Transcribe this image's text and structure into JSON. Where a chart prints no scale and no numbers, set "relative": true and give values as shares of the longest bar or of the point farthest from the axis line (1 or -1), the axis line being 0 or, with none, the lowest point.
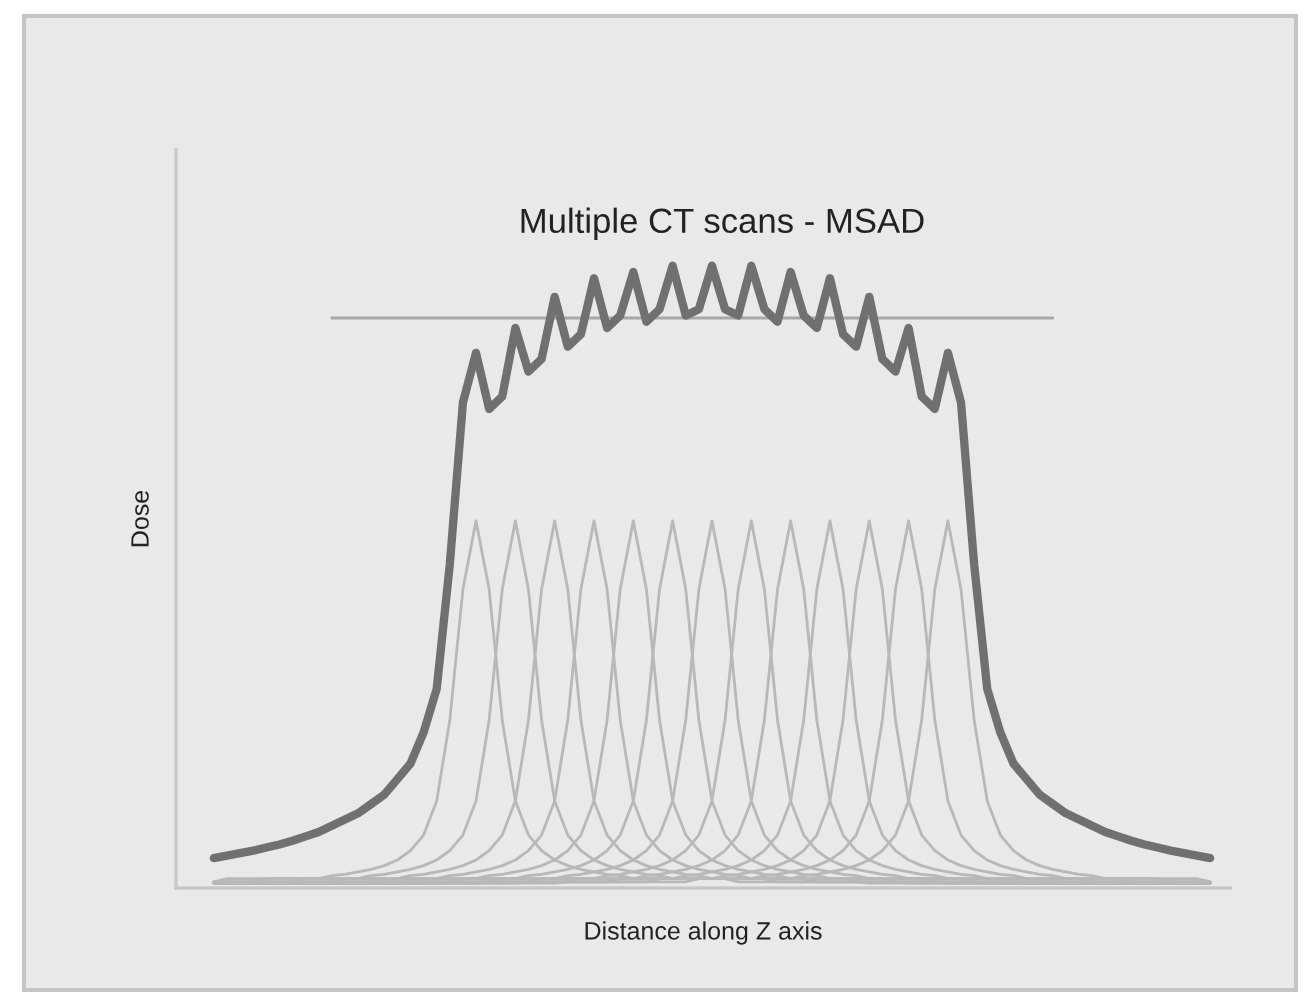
{
  "chart_data": {
    "type": "line",
    "relative": true,
    "tick_labels": false,
    "title": "Multiple CT scans - MSAD",
    "xlabel": "Distance along Z axis",
    "ylabel": "Dose",
    "categories": [
      null,
      null,
      null,
      null,
      null,
      null,
      null,
      null,
      null,
      null,
      null,
      null,
      null,
      null,
      null,
      null,
      null,
      null,
      null,
      null,
      null,
      null,
      null,
      null,
      null,
      null,
      null,
      null,
      null,
      null,
      null,
      null,
      null,
      null,
      null,
      null,
      null,
      null,
      null,
      null,
      null,
      null,
      null,
      null,
      null,
      null,
      null,
      null,
      null,
      null,
      null,
      null,
      null,
      null,
      null,
      null,
      null,
      null,
      null,
      null,
      null,
      null,
      null,
      null,
      null,
      null,
      null,
      null,
      null,
      null,
      null,
      null,
      null,
      null,
      null,
      null,
      null
    ],
    "series": [
      {
        "color": "#b8b8b8",
        "values": [
          0.01,
          0.015,
          0.015,
          0.015,
          0.015,
          0.015,
          0.015,
          0.015,
          0.015,
          0.02,
          0.022,
          0.026,
          0.03,
          0.036,
          0.045,
          0.06,
          0.085,
          0.14,
          0.27,
          0.48,
          0.59,
          0.48,
          0.27,
          0.14,
          0.085,
          0.06,
          0.045,
          0.036,
          0.03,
          0.026,
          0.022,
          0.02,
          0.015,
          0.015,
          0.015,
          0.015,
          0.015,
          0.015,
          0.015,
          0.015,
          0.01,
          0.01,
          0.01,
          0.01,
          0.01,
          0.01,
          0.01,
          0.01,
          0.01,
          0.01,
          0.008,
          0.008,
          0.008,
          0.008,
          0.008,
          0.008,
          0.008,
          0.008,
          0.008,
          0.008,
          0.008,
          0.008,
          0.008,
          0.008,
          0.008,
          0.008,
          0.008,
          0.008,
          0.008,
          0.008,
          0.008,
          0.008,
          0.008,
          0.008,
          0.008,
          0.008,
          0.008
        ]
      },
      {
        "color": "#b8b8b8",
        "values": [
          0.01,
          0.01,
          0.01,
          0.01,
          0.015,
          0.015,
          0.015,
          0.015,
          0.015,
          0.015,
          0.015,
          0.015,
          0.02,
          0.022,
          0.026,
          0.03,
          0.036,
          0.045,
          0.06,
          0.085,
          0.14,
          0.27,
          0.48,
          0.59,
          0.48,
          0.27,
          0.14,
          0.085,
          0.06,
          0.045,
          0.036,
          0.03,
          0.026,
          0.022,
          0.02,
          0.015,
          0.015,
          0.015,
          0.015,
          0.015,
          0.015,
          0.015,
          0.015,
          0.01,
          0.01,
          0.01,
          0.01,
          0.01,
          0.01,
          0.01,
          0.01,
          0.01,
          0.01,
          0.008,
          0.008,
          0.008,
          0.008,
          0.008,
          0.008,
          0.008,
          0.008,
          0.008,
          0.008,
          0.008,
          0.008,
          0.008,
          0.008,
          0.008,
          0.008,
          0.008,
          0.008,
          0.008,
          0.008,
          0.008,
          0.008,
          0.008,
          0.008
        ]
      },
      {
        "color": "#b8b8b8",
        "values": [
          0.01,
          0.01,
          0.01,
          0.01,
          0.01,
          0.01,
          0.01,
          0.015,
          0.015,
          0.015,
          0.015,
          0.015,
          0.015,
          0.015,
          0.015,
          0.02,
          0.022,
          0.026,
          0.03,
          0.036,
          0.045,
          0.06,
          0.085,
          0.14,
          0.27,
          0.48,
          0.59,
          0.48,
          0.27,
          0.14,
          0.085,
          0.06,
          0.045,
          0.036,
          0.03,
          0.026,
          0.022,
          0.02,
          0.015,
          0.015,
          0.015,
          0.015,
          0.015,
          0.015,
          0.015,
          0.015,
          0.01,
          0.01,
          0.01,
          0.01,
          0.01,
          0.01,
          0.01,
          0.01,
          0.01,
          0.01,
          0.008,
          0.008,
          0.008,
          0.008,
          0.008,
          0.008,
          0.008,
          0.008,
          0.008,
          0.008,
          0.008,
          0.008,
          0.008,
          0.008,
          0.008,
          0.008,
          0.008,
          0.008,
          0.008,
          0.008,
          0.008
        ]
      },
      {
        "color": "#b8b8b8",
        "values": [
          0.01,
          0.01,
          0.01,
          0.01,
          0.01,
          0.01,
          0.01,
          0.01,
          0.01,
          0.01,
          0.015,
          0.015,
          0.015,
          0.015,
          0.015,
          0.015,
          0.015,
          0.015,
          0.02,
          0.022,
          0.026,
          0.03,
          0.036,
          0.045,
          0.06,
          0.085,
          0.14,
          0.27,
          0.48,
          0.59,
          0.48,
          0.27,
          0.14,
          0.085,
          0.06,
          0.045,
          0.036,
          0.03,
          0.026,
          0.022,
          0.02,
          0.015,
          0.015,
          0.015,
          0.015,
          0.015,
          0.015,
          0.015,
          0.015,
          0.01,
          0.01,
          0.01,
          0.01,
          0.01,
          0.01,
          0.01,
          0.01,
          0.01,
          0.01,
          0.008,
          0.008,
          0.008,
          0.008,
          0.008,
          0.008,
          0.008,
          0.008,
          0.008,
          0.008,
          0.008,
          0.008,
          0.008,
          0.008,
          0.008,
          0.008,
          0.008,
          0.008
        ]
      },
      {
        "color": "#b8b8b8",
        "values": [
          0.008,
          0.008,
          0.008,
          0.01,
          0.01,
          0.01,
          0.01,
          0.01,
          0.01,
          0.01,
          0.01,
          0.01,
          0.01,
          0.015,
          0.015,
          0.015,
          0.015,
          0.015,
          0.015,
          0.015,
          0.015,
          0.02,
          0.022,
          0.026,
          0.03,
          0.036,
          0.045,
          0.06,
          0.085,
          0.14,
          0.27,
          0.48,
          0.59,
          0.48,
          0.27,
          0.14,
          0.085,
          0.06,
          0.045,
          0.036,
          0.03,
          0.026,
          0.022,
          0.02,
          0.015,
          0.015,
          0.015,
          0.015,
          0.015,
          0.015,
          0.015,
          0.015,
          0.01,
          0.01,
          0.01,
          0.01,
          0.01,
          0.01,
          0.01,
          0.01,
          0.01,
          0.01,
          0.008,
          0.008,
          0.008,
          0.008,
          0.008,
          0.008,
          0.008,
          0.008,
          0.008,
          0.008,
          0.008,
          0.008,
          0.008,
          0.008,
          0.008
        ]
      },
      {
        "color": "#b8b8b8",
        "values": [
          0.008,
          0.008,
          0.008,
          0.008,
          0.008,
          0.008,
          0.01,
          0.01,
          0.01,
          0.01,
          0.01,
          0.01,
          0.01,
          0.01,
          0.01,
          0.01,
          0.015,
          0.015,
          0.015,
          0.015,
          0.015,
          0.015,
          0.015,
          0.015,
          0.02,
          0.022,
          0.026,
          0.03,
          0.036,
          0.045,
          0.06,
          0.085,
          0.14,
          0.27,
          0.48,
          0.59,
          0.48,
          0.27,
          0.14,
          0.085,
          0.06,
          0.045,
          0.036,
          0.03,
          0.026,
          0.022,
          0.02,
          0.015,
          0.015,
          0.015,
          0.015,
          0.015,
          0.015,
          0.015,
          0.015,
          0.01,
          0.01,
          0.01,
          0.01,
          0.01,
          0.01,
          0.01,
          0.01,
          0.01,
          0.01,
          0.008,
          0.008,
          0.008,
          0.008,
          0.008,
          0.008,
          0.008,
          0.008,
          0.008,
          0.008,
          0.008,
          0.008
        ]
      },
      {
        "color": "#b8b8b8",
        "values": [
          0.008,
          0.008,
          0.008,
          0.008,
          0.008,
          0.008,
          0.008,
          0.008,
          0.008,
          0.01,
          0.01,
          0.01,
          0.01,
          0.01,
          0.01,
          0.01,
          0.01,
          0.01,
          0.01,
          0.015,
          0.015,
          0.015,
          0.015,
          0.015,
          0.015,
          0.015,
          0.015,
          0.02,
          0.022,
          0.026,
          0.03,
          0.036,
          0.045,
          0.06,
          0.085,
          0.14,
          0.27,
          0.48,
          0.59,
          0.48,
          0.27,
          0.14,
          0.085,
          0.06,
          0.045,
          0.036,
          0.03,
          0.026,
          0.022,
          0.02,
          0.015,
          0.015,
          0.015,
          0.015,
          0.015,
          0.015,
          0.015,
          0.015,
          0.01,
          0.01,
          0.01,
          0.01,
          0.01,
          0.01,
          0.01,
          0.01,
          0.01,
          0.01,
          0.008,
          0.008,
          0.008,
          0.008,
          0.008,
          0.008,
          0.008,
          0.008,
          0.008
        ]
      },
      {
        "color": "#b8b8b8",
        "values": [
          0.008,
          0.008,
          0.008,
          0.008,
          0.008,
          0.008,
          0.008,
          0.008,
          0.008,
          0.008,
          0.008,
          0.008,
          0.01,
          0.01,
          0.01,
          0.01,
          0.01,
          0.01,
          0.01,
          0.01,
          0.01,
          0.01,
          0.015,
          0.015,
          0.015,
          0.015,
          0.015,
          0.015,
          0.015,
          0.015,
          0.02,
          0.022,
          0.026,
          0.03,
          0.036,
          0.045,
          0.06,
          0.085,
          0.14,
          0.27,
          0.48,
          0.59,
          0.48,
          0.27,
          0.14,
          0.085,
          0.06,
          0.045,
          0.036,
          0.03,
          0.026,
          0.022,
          0.02,
          0.015,
          0.015,
          0.015,
          0.015,
          0.015,
          0.015,
          0.015,
          0.015,
          0.01,
          0.01,
          0.01,
          0.01,
          0.01,
          0.01,
          0.01,
          0.01,
          0.01,
          0.01,
          0.008,
          0.008,
          0.008,
          0.008,
          0.008,
          0.008
        ]
      },
      {
        "color": "#b8b8b8",
        "values": [
          0.008,
          0.008,
          0.008,
          0.008,
          0.008,
          0.008,
          0.008,
          0.008,
          0.008,
          0.008,
          0.008,
          0.008,
          0.008,
          0.008,
          0.008,
          0.01,
          0.01,
          0.01,
          0.01,
          0.01,
          0.01,
          0.01,
          0.01,
          0.01,
          0.01,
          0.015,
          0.015,
          0.015,
          0.015,
          0.015,
          0.015,
          0.015,
          0.015,
          0.02,
          0.022,
          0.026,
          0.03,
          0.036,
          0.045,
          0.06,
          0.085,
          0.14,
          0.27,
          0.48,
          0.59,
          0.48,
          0.27,
          0.14,
          0.085,
          0.06,
          0.045,
          0.036,
          0.03,
          0.026,
          0.022,
          0.02,
          0.015,
          0.015,
          0.015,
          0.015,
          0.015,
          0.015,
          0.015,
          0.015,
          0.01,
          0.01,
          0.01,
          0.01,
          0.01,
          0.01,
          0.01,
          0.01,
          0.01,
          0.01,
          0.008,
          0.008,
          0.008
        ]
      },
      {
        "color": "#b8b8b8",
        "values": [
          0.008,
          0.008,
          0.008,
          0.008,
          0.008,
          0.008,
          0.008,
          0.008,
          0.008,
          0.008,
          0.008,
          0.008,
          0.008,
          0.008,
          0.008,
          0.008,
          0.008,
          0.008,
          0.01,
          0.01,
          0.01,
          0.01,
          0.01,
          0.01,
          0.01,
          0.01,
          0.01,
          0.01,
          0.015,
          0.015,
          0.015,
          0.015,
          0.015,
          0.015,
          0.015,
          0.015,
          0.02,
          0.022,
          0.026,
          0.03,
          0.036,
          0.045,
          0.06,
          0.085,
          0.14,
          0.27,
          0.48,
          0.59,
          0.48,
          0.27,
          0.14,
          0.085,
          0.06,
          0.045,
          0.036,
          0.03,
          0.026,
          0.022,
          0.02,
          0.015,
          0.015,
          0.015,
          0.015,
          0.015,
          0.015,
          0.015,
          0.015,
          0.01,
          0.01,
          0.01,
          0.01,
          0.01,
          0.01,
          0.01,
          0.01,
          0.01,
          0.01
        ]
      },
      {
        "color": "#b8b8b8",
        "values": [
          0.008,
          0.008,
          0.008,
          0.008,
          0.008,
          0.008,
          0.008,
          0.008,
          0.008,
          0.008,
          0.008,
          0.008,
          0.008,
          0.008,
          0.008,
          0.008,
          0.008,
          0.008,
          0.008,
          0.008,
          0.008,
          0.01,
          0.01,
          0.01,
          0.01,
          0.01,
          0.01,
          0.01,
          0.01,
          0.01,
          0.01,
          0.015,
          0.015,
          0.015,
          0.015,
          0.015,
          0.015,
          0.015,
          0.015,
          0.02,
          0.022,
          0.026,
          0.03,
          0.036,
          0.045,
          0.06,
          0.085,
          0.14,
          0.27,
          0.48,
          0.59,
          0.48,
          0.27,
          0.14,
          0.085,
          0.06,
          0.045,
          0.036,
          0.03,
          0.026,
          0.022,
          0.02,
          0.015,
          0.015,
          0.015,
          0.015,
          0.015,
          0.015,
          0.015,
          0.015,
          0.01,
          0.01,
          0.01,
          0.01,
          0.01,
          0.01,
          0.01
        ]
      },
      {
        "color": "#b8b8b8",
        "values": [
          0.008,
          0.008,
          0.008,
          0.008,
          0.008,
          0.008,
          0.008,
          0.008,
          0.008,
          0.008,
          0.008,
          0.008,
          0.008,
          0.008,
          0.008,
          0.008,
          0.008,
          0.008,
          0.008,
          0.008,
          0.008,
          0.008,
          0.008,
          0.008,
          0.01,
          0.01,
          0.01,
          0.01,
          0.01,
          0.01,
          0.01,
          0.01,
          0.01,
          0.01,
          0.015,
          0.015,
          0.015,
          0.015,
          0.015,
          0.015,
          0.015,
          0.015,
          0.02,
          0.022,
          0.026,
          0.03,
          0.036,
          0.045,
          0.06,
          0.085,
          0.14,
          0.27,
          0.48,
          0.59,
          0.48,
          0.27,
          0.14,
          0.085,
          0.06,
          0.045,
          0.036,
          0.03,
          0.026,
          0.022,
          0.02,
          0.015,
          0.015,
          0.015,
          0.015,
          0.015,
          0.015,
          0.015,
          0.015,
          0.01,
          0.01,
          0.01,
          0.01
        ]
      },
      {
        "color": "#b8b8b8",
        "values": [
          0.008,
          0.008,
          0.008,
          0.008,
          0.008,
          0.008,
          0.008,
          0.008,
          0.008,
          0.008,
          0.008,
          0.008,
          0.008,
          0.008,
          0.008,
          0.008,
          0.008,
          0.008,
          0.008,
          0.008,
          0.008,
          0.008,
          0.008,
          0.008,
          0.008,
          0.008,
          0.008,
          0.01,
          0.01,
          0.01,
          0.01,
          0.01,
          0.01,
          0.01,
          0.01,
          0.01,
          0.01,
          0.015,
          0.015,
          0.015,
          0.015,
          0.015,
          0.015,
          0.015,
          0.015,
          0.02,
          0.022,
          0.026,
          0.03,
          0.036,
          0.045,
          0.06,
          0.085,
          0.14,
          0.27,
          0.48,
          0.59,
          0.48,
          0.27,
          0.14,
          0.085,
          0.06,
          0.045,
          0.036,
          0.03,
          0.026,
          0.022,
          0.02,
          0.015,
          0.015,
          0.015,
          0.015,
          0.015,
          0.015,
          0.015,
          0.015,
          0.01
        ]
      },
      {
        "color": "#a8a8a8",
        "values": [
          null,
          null,
          null,
          null,
          null,
          null,
          null,
          null,
          null,
          0.916,
          0.916,
          0.916,
          0.916,
          0.916,
          0.916,
          0.916,
          0.916,
          0.916,
          0.916,
          0.916,
          0.916,
          0.916,
          0.916,
          0.916,
          0.916,
          0.916,
          0.916,
          0.916,
          0.916,
          0.916,
          0.916,
          0.916,
          0.916,
          0.916,
          0.916,
          0.916,
          0.916,
          0.916,
          0.916,
          0.916,
          0.916,
          0.916,
          0.916,
          0.916,
          0.916,
          0.916,
          0.916,
          0.916,
          0.916,
          0.916,
          0.916,
          0.916,
          0.916,
          0.916,
          0.916,
          0.916,
          0.916,
          0.916,
          0.916,
          0.916,
          0.916,
          0.916,
          0.916,
          0.916,
          0.916,
          null,
          null,
          null,
          null,
          null,
          null,
          null,
          null,
          null,
          null,
          null,
          null
        ]
      },
      {
        "color": "#707070",
        "values": [
          0.048,
          0.052,
          0.056,
          0.06,
          0.065,
          0.07,
          0.076,
          0.083,
          0.09,
          0.1,
          0.11,
          0.12,
          0.135,
          0.15,
          0.175,
          0.2,
          0.25,
          0.32,
          0.52,
          0.78,
          0.86,
          0.77,
          0.79,
          0.9,
          0.83,
          0.85,
          0.95,
          0.87,
          0.89,
          0.98,
          0.9,
          0.92,
          0.99,
          0.91,
          0.93,
          1.0,
          0.92,
          0.93,
          1.0,
          0.93,
          0.92,
          1.0,
          0.93,
          0.91,
          0.99,
          0.92,
          0.9,
          0.98,
          0.89,
          0.87,
          0.95,
          0.85,
          0.83,
          0.9,
          0.79,
          0.77,
          0.86,
          0.78,
          0.52,
          0.32,
          0.25,
          0.2,
          0.175,
          0.15,
          0.135,
          0.12,
          0.11,
          0.1,
          0.09,
          0.083,
          0.076,
          0.07,
          0.065,
          0.06,
          0.056,
          0.052,
          0.048
        ]
      }
    ]
  }
}
